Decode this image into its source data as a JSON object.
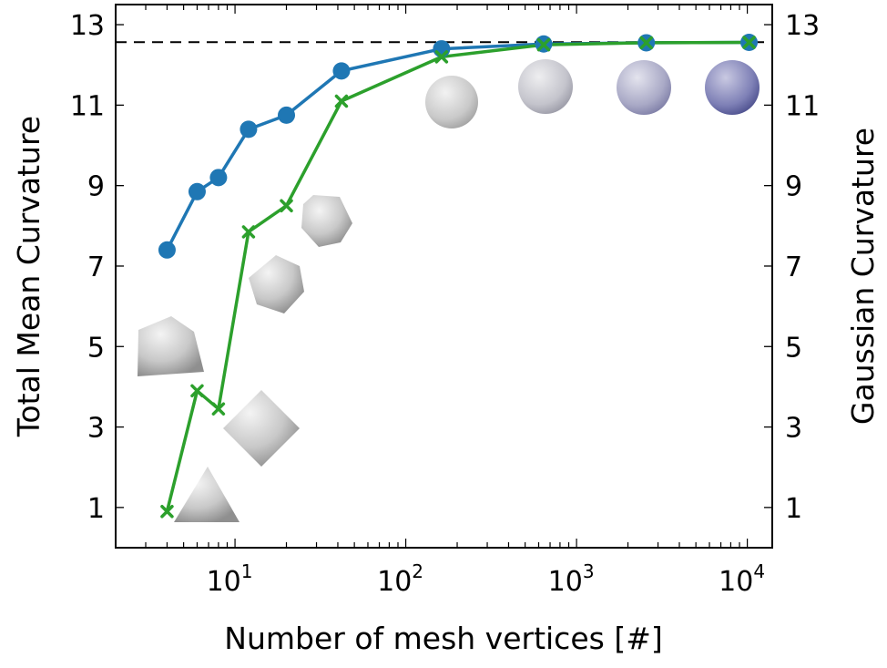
{
  "chart_data": {
    "type": "line",
    "xlabel": "Number of mesh vertices [#]",
    "ylabel_left": "Total Mean Curvature",
    "ylabel_right": "Gaussian Curvature",
    "x_scale": "log",
    "xlim": [
      2,
      14000
    ],
    "ylim": [
      0,
      13.5
    ],
    "y_ticks": [
      1,
      3,
      5,
      7,
      9,
      11,
      13
    ],
    "x_tick_labels": [
      {
        "value": 10,
        "base": "10",
        "exp": "1"
      },
      {
        "value": 100,
        "base": "10",
        "exp": "2"
      },
      {
        "value": 1000,
        "base": "10",
        "exp": "3"
      },
      {
        "value": 10000,
        "base": "10",
        "exp": "4"
      }
    ],
    "reference_line": {
      "y": 12.566,
      "style": "dashed"
    },
    "grid": false,
    "series": [
      {
        "marker": "circle",
        "color": "#1f77b4",
        "points": [
          [
            4,
            7.4
          ],
          [
            6,
            8.85
          ],
          [
            8,
            9.2
          ],
          [
            12,
            10.4
          ],
          [
            20,
            10.75
          ],
          [
            42,
            11.85
          ],
          [
            162,
            12.4
          ],
          [
            642,
            12.52
          ],
          [
            2562,
            12.55
          ],
          [
            10242,
            12.56
          ]
        ]
      },
      {
        "marker": "x",
        "color": "#2ca02c",
        "points": [
          [
            4,
            0.9
          ],
          [
            6,
            3.9
          ],
          [
            8,
            3.45
          ],
          [
            12,
            7.85
          ],
          [
            20,
            8.5
          ],
          [
            42,
            11.1
          ],
          [
            162,
            12.2
          ],
          [
            642,
            12.5
          ],
          [
            2562,
            12.55
          ],
          [
            10242,
            12.56
          ]
        ]
      }
    ],
    "mesh_thumbnails": [
      {
        "shape": "tetrahedron",
        "vertices": 4
      },
      {
        "shape": "octahedron",
        "vertices": 6
      },
      {
        "shape": "cube",
        "vertices": 8
      },
      {
        "shape": "icosahedron",
        "vertices": 12
      },
      {
        "shape": "dodecahedron",
        "vertices": 20
      },
      {
        "shape": "geodesic-sphere",
        "vertices": 42
      },
      {
        "shape": "sphere",
        "vertices": 162
      },
      {
        "shape": "sphere",
        "vertices": 642
      },
      {
        "shape": "sphere",
        "vertices": 2562
      },
      {
        "shape": "sphere",
        "vertices": 10242
      }
    ]
  }
}
